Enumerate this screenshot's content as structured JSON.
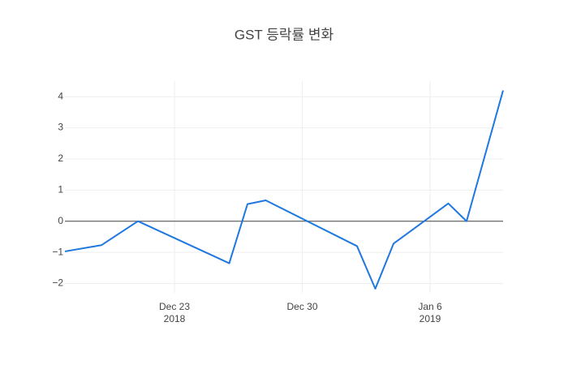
{
  "chart_data": {
    "type": "line",
    "title": "GST 등락률 변화",
    "x": [
      "2018-12-17",
      "2018-12-19",
      "2018-12-21",
      "2018-12-26",
      "2018-12-27",
      "2018-12-28",
      "2019-01-02",
      "2019-01-03",
      "2019-01-04",
      "2019-01-07",
      "2019-01-08",
      "2019-01-10"
    ],
    "series": [
      {
        "color": "#1f77e0",
        "values": [
          -0.97,
          -0.77,
          0.0,
          -1.35,
          0.55,
          0.67,
          -0.8,
          -2.17,
          -0.72,
          0.57,
          0.0,
          4.2
        ]
      }
    ],
    "xlim": [
      "2018-12-17",
      "2019-01-10"
    ],
    "xticks": [
      {
        "value": "2018-12-23",
        "label": "Dec 23\n2018"
      },
      {
        "value": "2018-12-30",
        "label": "Dec 30"
      },
      {
        "value": "2019-01-06",
        "label": "Jan 6\n2019"
      }
    ],
    "ylim": [
      -2.3,
      4.5
    ],
    "yticks": [
      {
        "value": -2,
        "label": "−2"
      },
      {
        "value": -1,
        "label": "−1"
      },
      0,
      1,
      2,
      3,
      4
    ],
    "grid": true,
    "zeroline": true
  }
}
